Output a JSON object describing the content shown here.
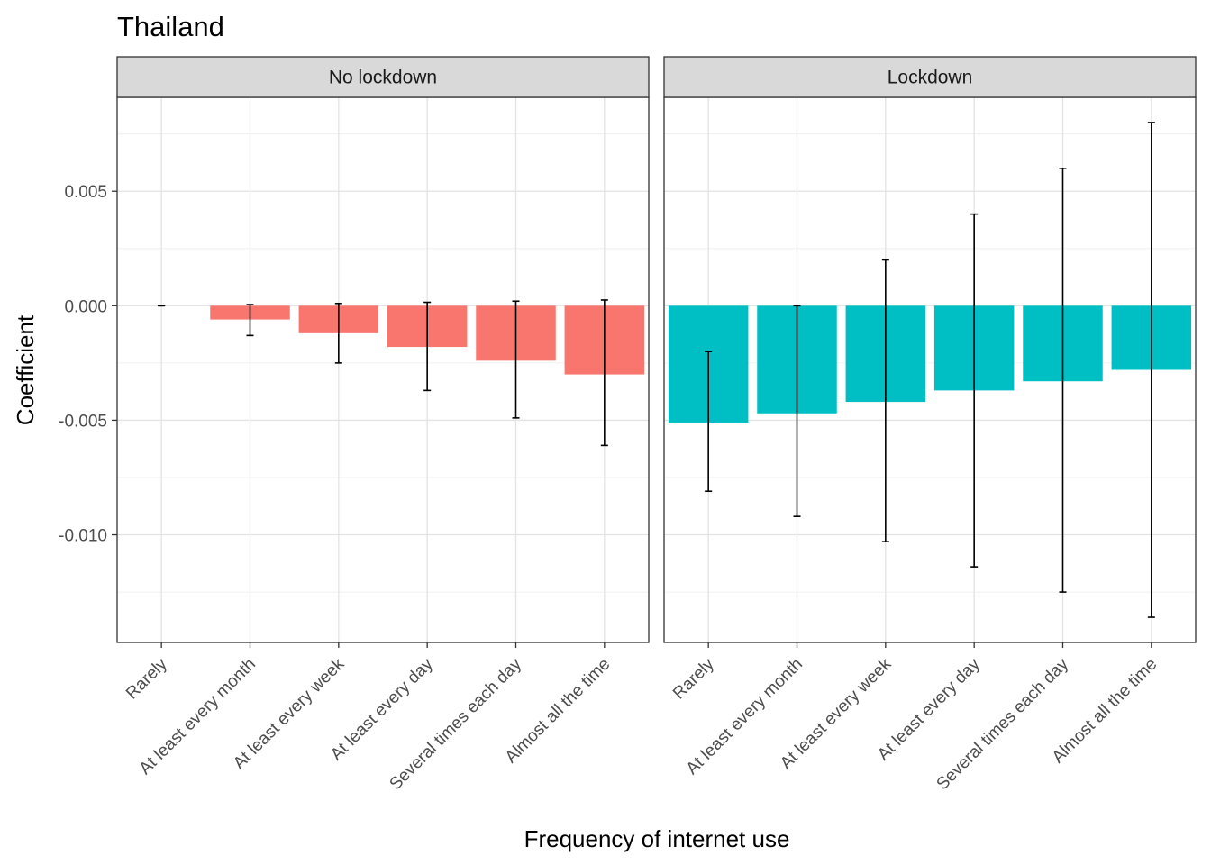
{
  "chart_data": {
    "type": "bar",
    "title": "Thailand",
    "xlabel": "Frequency of internet use",
    "ylabel": "Coefficient",
    "ylim": [
      -0.0147,
      0.0091
    ],
    "yticks": [
      {
        "value": 0.005,
        "label": "0.005"
      },
      {
        "value": 0.0,
        "label": "0.000"
      },
      {
        "value": -0.005,
        "label": "-0.005"
      },
      {
        "value": -0.01,
        "label": "-0.010"
      }
    ],
    "categories": [
      "Rarely",
      "At least every month",
      "At least every week",
      "At least every day",
      "Several times each day",
      "Almost all the time"
    ],
    "grid": true,
    "legend": "none",
    "facets": [
      {
        "name": "No lockdown",
        "color": "#F8766D",
        "values": [
          0.0,
          -0.0006,
          -0.0012,
          -0.0018,
          -0.0024,
          -0.003
        ],
        "lower": [
          0.0,
          -0.0013,
          -0.0025,
          -0.0037,
          -0.0049,
          -0.0061
        ],
        "upper": [
          0.0,
          5e-05,
          0.0001,
          0.00015,
          0.0002,
          0.00025
        ]
      },
      {
        "name": "Lockdown",
        "color": "#00BFC4",
        "values": [
          -0.0051,
          -0.0047,
          -0.0042,
          -0.0037,
          -0.0033,
          -0.0028
        ],
        "lower": [
          -0.0081,
          -0.0092,
          -0.0103,
          -0.0114,
          -0.0125,
          -0.0136
        ],
        "upper": [
          -0.002,
          0.0,
          0.002,
          0.004,
          0.006,
          0.008
        ]
      }
    ]
  }
}
